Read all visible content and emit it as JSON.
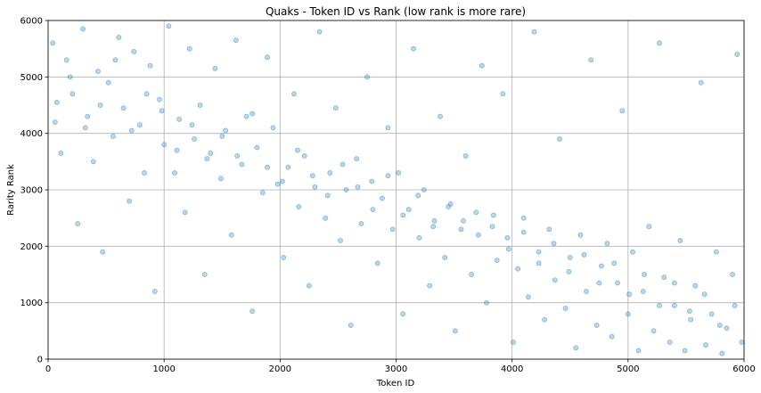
{
  "chart_data": {
    "type": "scatter",
    "title": "Quaks - Token ID vs Rank (low rank is more rare)",
    "xlabel": "Token ID",
    "ylabel": "Rarity Rank",
    "xlim": [
      0,
      6000
    ],
    "ylim": [
      0,
      6000
    ],
    "xticks": [
      0,
      1000,
      2000,
      3000,
      4000,
      5000,
      6000
    ],
    "yticks": [
      0,
      1000,
      2000,
      3000,
      4000,
      5000,
      6000
    ],
    "xtick_labels": [
      "0",
      "1000",
      "2000",
      "3000",
      "4000",
      "5000",
      "6000"
    ],
    "ytick_labels": [
      "0",
      "1000",
      "2000",
      "3000",
      "4000",
      "5000",
      "6000"
    ],
    "grid": true,
    "marker_color": "#1f77b4",
    "marker_alpha": 0.3,
    "series": [
      {
        "points": [
          [
            40,
            5600
          ],
          [
            75,
            4550
          ],
          [
            110,
            3650
          ],
          [
            160,
            5300
          ],
          [
            210,
            4700
          ],
          [
            255,
            2400
          ],
          [
            300,
            5850
          ],
          [
            340,
            4300
          ],
          [
            390,
            3500
          ],
          [
            430,
            5100
          ],
          [
            470,
            1900
          ],
          [
            520,
            4900
          ],
          [
            560,
            3950
          ],
          [
            610,
            5700
          ],
          [
            650,
            4450
          ],
          [
            700,
            2800
          ],
          [
            740,
            5450
          ],
          [
            790,
            4150
          ],
          [
            830,
            3300
          ],
          [
            880,
            5200
          ],
          [
            920,
            1200
          ],
          [
            960,
            4600
          ],
          [
            1000,
            3800
          ],
          [
            1040,
            5900
          ],
          [
            1090,
            3300
          ],
          [
            1130,
            4250
          ],
          [
            1180,
            2600
          ],
          [
            1220,
            5500
          ],
          [
            1260,
            3900
          ],
          [
            1310,
            4500
          ],
          [
            1350,
            1500
          ],
          [
            1400,
            3650
          ],
          [
            1440,
            5150
          ],
          [
            1490,
            3200
          ],
          [
            1530,
            4050
          ],
          [
            1580,
            2200
          ],
          [
            1620,
            5650
          ],
          [
            1670,
            3450
          ],
          [
            1710,
            4300
          ],
          [
            1760,
            850
          ],
          [
            1800,
            3750
          ],
          [
            1850,
            2950
          ],
          [
            1890,
            5350
          ],
          [
            1940,
            4100
          ],
          [
            1980,
            3100
          ],
          [
            2030,
            1800
          ],
          [
            2070,
            3400
          ],
          [
            2120,
            4700
          ],
          [
            2160,
            2700
          ],
          [
            2210,
            3600
          ],
          [
            2250,
            1300
          ],
          [
            2300,
            3050
          ],
          [
            2340,
            5800
          ],
          [
            2390,
            2500
          ],
          [
            2430,
            3300
          ],
          [
            2480,
            4450
          ],
          [
            2520,
            2100
          ],
          [
            2570,
            3000
          ],
          [
            2610,
            600
          ],
          [
            2660,
            3550
          ],
          [
            2700,
            2400
          ],
          [
            2750,
            5000
          ],
          [
            2790,
            3150
          ],
          [
            2840,
            1700
          ],
          [
            2880,
            2850
          ],
          [
            2930,
            4100
          ],
          [
            2970,
            2300
          ],
          [
            3020,
            3300
          ],
          [
            3060,
            800
          ],
          [
            3110,
            2650
          ],
          [
            3150,
            5500
          ],
          [
            3200,
            2150
          ],
          [
            3240,
            3000
          ],
          [
            3290,
            1300
          ],
          [
            3330,
            2450
          ],
          [
            3380,
            4300
          ],
          [
            3420,
            1800
          ],
          [
            3470,
            2750
          ],
          [
            3510,
            500
          ],
          [
            3560,
            2300
          ],
          [
            3600,
            3600
          ],
          [
            3650,
            1500
          ],
          [
            3690,
            2600
          ],
          [
            3740,
            5200
          ],
          [
            3780,
            1000
          ],
          [
            3830,
            2350
          ],
          [
            3870,
            1750
          ],
          [
            3920,
            4700
          ],
          [
            3960,
            2150
          ],
          [
            4010,
            300
          ],
          [
            4050,
            1600
          ],
          [
            4100,
            2500
          ],
          [
            4140,
            1100
          ],
          [
            4190,
            5800
          ],
          [
            4230,
            1900
          ],
          [
            4280,
            700
          ],
          [
            4320,
            2300
          ],
          [
            4370,
            1400
          ],
          [
            4410,
            3900
          ],
          [
            4460,
            900
          ],
          [
            4500,
            1800
          ],
          [
            4550,
            200
          ],
          [
            4590,
            2200
          ],
          [
            4640,
            1200
          ],
          [
            4680,
            5300
          ],
          [
            4730,
            600
          ],
          [
            4770,
            1650
          ],
          [
            4820,
            2050
          ],
          [
            4860,
            400
          ],
          [
            4910,
            1350
          ],
          [
            4950,
            4400
          ],
          [
            5000,
            800
          ],
          [
            5040,
            1900
          ],
          [
            5090,
            150
          ],
          [
            5130,
            1200
          ],
          [
            5180,
            2350
          ],
          [
            5220,
            500
          ],
          [
            5270,
            5600
          ],
          [
            5310,
            1450
          ],
          [
            5360,
            300
          ],
          [
            5400,
            950
          ],
          [
            5450,
            2100
          ],
          [
            5490,
            150
          ],
          [
            5540,
            700
          ],
          [
            5580,
            1300
          ],
          [
            5630,
            4900
          ],
          [
            5670,
            250
          ],
          [
            5720,
            800
          ],
          [
            5760,
            1900
          ],
          [
            5810,
            100
          ],
          [
            5850,
            550
          ],
          [
            5900,
            1500
          ],
          [
            5940,
            5400
          ],
          [
            5980,
            300
          ],
          [
            60,
            4200
          ],
          [
            190,
            5000
          ],
          [
            320,
            4100
          ],
          [
            450,
            4500
          ],
          [
            580,
            5300
          ],
          [
            720,
            4050
          ],
          [
            850,
            4700
          ],
          [
            980,
            4400
          ],
          [
            1110,
            3700
          ],
          [
            1240,
            4150
          ],
          [
            1370,
            3550
          ],
          [
            1500,
            3950
          ],
          [
            1630,
            3600
          ],
          [
            1760,
            4350
          ],
          [
            1890,
            3400
          ],
          [
            2020,
            3150
          ],
          [
            2150,
            3700
          ],
          [
            2280,
            3250
          ],
          [
            2410,
            2900
          ],
          [
            2540,
            3450
          ],
          [
            2670,
            3050
          ],
          [
            2800,
            2650
          ],
          [
            2930,
            3250
          ],
          [
            3060,
            2550
          ],
          [
            3190,
            2900
          ],
          [
            3320,
            2350
          ],
          [
            3450,
            2700
          ],
          [
            3580,
            2450
          ],
          [
            3710,
            2200
          ],
          [
            3840,
            2550
          ],
          [
            3970,
            1950
          ],
          [
            4100,
            2250
          ],
          [
            4230,
            1700
          ],
          [
            4360,
            2050
          ],
          [
            4490,
            1550
          ],
          [
            4620,
            1850
          ],
          [
            4750,
            1350
          ],
          [
            4880,
            1700
          ],
          [
            5010,
            1150
          ],
          [
            5140,
            1500
          ],
          [
            5270,
            950
          ],
          [
            5400,
            1350
          ],
          [
            5530,
            850
          ],
          [
            5660,
            1150
          ],
          [
            5790,
            600
          ],
          [
            5920,
            950
          ]
        ]
      }
    ]
  }
}
